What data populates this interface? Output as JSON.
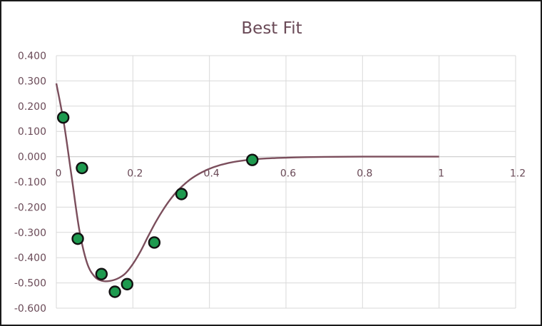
{
  "chart_data": {
    "type": "scatter",
    "title": "Best Fit",
    "xlabel": "",
    "ylabel": "",
    "xlim": [
      0,
      1.2
    ],
    "ylim": [
      -0.6,
      0.4
    ],
    "x_ticks": [
      0,
      0.2,
      0.4,
      0.6,
      0.8,
      1,
      1.2
    ],
    "x_tick_labels": [
      "0",
      "0.2",
      "0.4",
      "0.6",
      "0.8",
      "1",
      "1.2"
    ],
    "y_ticks": [
      0.4,
      0.3,
      0.2,
      0.1,
      0,
      -0.1,
      -0.2,
      -0.3,
      -0.4,
      -0.5,
      -0.6
    ],
    "y_tick_labels": [
      "0.400",
      "0.300",
      "0.200",
      "0.100",
      "0.000",
      "-0.100",
      "-0.200",
      "-0.300",
      "-0.400",
      "-0.500",
      "-0.600"
    ],
    "grid": true,
    "legend": "none",
    "colors": {
      "points_fill": "#1e9a4f",
      "points_edge": "#111111",
      "fit_line": "#7b4e5c",
      "text": "#6a4a57",
      "grid": "#d9d9d9"
    },
    "series": [
      {
        "kind": "points",
        "x": [
          0.018,
          0.056,
          0.067,
          0.118,
          0.153,
          0.185,
          0.256,
          0.327,
          0.512
        ],
        "y": [
          0.155,
          -0.325,
          -0.045,
          -0.465,
          -0.535,
          -0.505,
          -0.34,
          -0.148,
          -0.013
        ]
      },
      {
        "kind": "line",
        "x": [
          0.0,
          0.02,
          0.04,
          0.06,
          0.08,
          0.1,
          0.12,
          0.14,
          0.16,
          0.18,
          0.2,
          0.22,
          0.24,
          0.26,
          0.28,
          0.3,
          0.32,
          0.35,
          0.38,
          0.41,
          0.45,
          0.5,
          0.55,
          0.6,
          0.65,
          0.7,
          0.8,
          0.9,
          1.0
        ],
        "y": [
          0.29,
          0.13,
          -0.08,
          -0.29,
          -0.42,
          -0.475,
          -0.492,
          -0.492,
          -0.483,
          -0.463,
          -0.425,
          -0.375,
          -0.315,
          -0.258,
          -0.208,
          -0.165,
          -0.13,
          -0.09,
          -0.062,
          -0.042,
          -0.025,
          -0.013,
          -0.007,
          -0.004,
          -0.002,
          -0.001,
          0.0,
          0.0,
          0.0
        ]
      }
    ]
  }
}
